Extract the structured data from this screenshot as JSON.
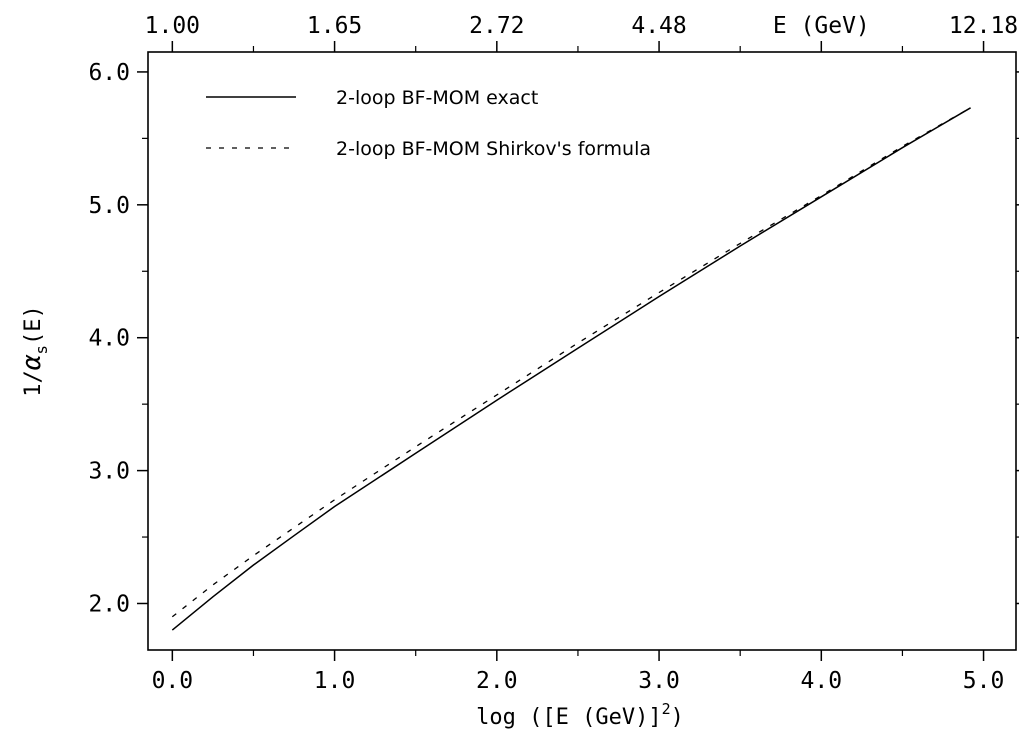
{
  "chart_data": {
    "type": "line",
    "xlabel": {
      "prefix": "log ([E (GeV)]",
      "superscript": "2",
      "suffix": ")"
    },
    "ylabel": {
      "prefix": "1/",
      "symbol": "α",
      "subscript": "s",
      "suffix": "(E)"
    },
    "xlim": [
      -0.15,
      5.2
    ],
    "ylim": [
      1.65,
      6.15
    ],
    "x_ticks": [
      {
        "value": 0.0,
        "label": "0.0"
      },
      {
        "value": 1.0,
        "label": "1.0"
      },
      {
        "value": 2.0,
        "label": "2.0"
      },
      {
        "value": 3.0,
        "label": "3.0"
      },
      {
        "value": 4.0,
        "label": "4.0"
      },
      {
        "value": 5.0,
        "label": "5.0"
      }
    ],
    "y_ticks": [
      {
        "value": 2.0,
        "label": "2.0"
      },
      {
        "value": 3.0,
        "label": "3.0"
      },
      {
        "value": 4.0,
        "label": "4.0"
      },
      {
        "value": 5.0,
        "label": "5.0"
      },
      {
        "value": 6.0,
        "label": "6.0"
      }
    ],
    "top_ticks": [
      {
        "value": 0.0,
        "label": "1.00"
      },
      {
        "value": 1.0,
        "label": "1.65"
      },
      {
        "value": 2.0,
        "label": "2.72"
      },
      {
        "value": 3.0,
        "label": "4.48"
      },
      {
        "value": 4.0,
        "label": "E (GeV)"
      },
      {
        "value": 5.0,
        "label": "12.18"
      }
    ],
    "series": [
      {
        "name": "2-loop BF-MOM exact",
        "style": "solid",
        "color": "#000000",
        "x": [
          0.0,
          0.25,
          0.5,
          0.75,
          1.0,
          1.5,
          2.0,
          2.5,
          3.0,
          3.5,
          4.0,
          4.5,
          4.92
        ],
        "y": [
          1.8,
          2.05,
          2.29,
          2.51,
          2.73,
          3.13,
          3.53,
          3.92,
          4.31,
          4.69,
          5.06,
          5.43,
          5.73
        ]
      },
      {
        "name": "2-loop BF-MOM Shirkov's formula",
        "style": "dashed",
        "color": "#000000",
        "x": [
          0.0,
          0.25,
          0.5,
          0.75,
          1.0,
          1.5,
          2.0,
          2.5,
          3.0,
          3.5,
          4.0,
          4.5,
          4.92
        ],
        "y": [
          1.9,
          2.14,
          2.36,
          2.57,
          2.78,
          3.18,
          3.57,
          3.96,
          4.34,
          4.71,
          5.07,
          5.44,
          5.73
        ]
      }
    ]
  }
}
